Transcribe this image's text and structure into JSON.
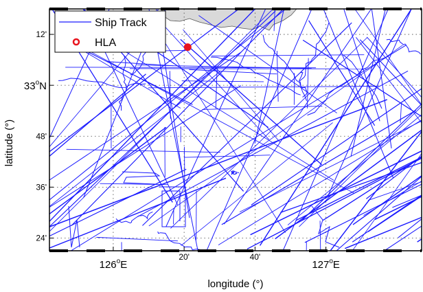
{
  "map": {
    "x_label": "longitude (°)",
    "y_label": "latitude (°)",
    "x_ticks": [
      {
        "lon": 126.0,
        "deg": "126",
        "unit": "E",
        "minutes": ""
      },
      {
        "lon": 126.3333,
        "deg": "",
        "unit": "",
        "minutes": "20'"
      },
      {
        "lon": 126.6667,
        "deg": "",
        "unit": "",
        "minutes": "40'"
      },
      {
        "lon": 127.0,
        "deg": "127",
        "unit": "E",
        "minutes": ""
      }
    ],
    "y_ticks": [
      {
        "lat": 33.2,
        "deg": "",
        "unit": "",
        "minutes": "12'"
      },
      {
        "lat": 33.0,
        "deg": "33",
        "unit": "N",
        "minutes": ""
      },
      {
        "lat": 32.8,
        "deg": "",
        "unit": "",
        "minutes": "48'"
      },
      {
        "lat": 32.6,
        "deg": "",
        "unit": "",
        "minutes": "36'"
      },
      {
        "lat": 32.4,
        "deg": "",
        "unit": "",
        "minutes": "24'"
      }
    ],
    "degree_symbol": "o",
    "lon_range": [
      125.7,
      127.45
    ],
    "lat_range": [
      32.35,
      33.3
    ],
    "grid": "dotted",
    "legend_position": "top-left",
    "legend": [
      {
        "key": "ship_track",
        "label": "Ship Track",
        "marker": "line",
        "color": "#1a1aff"
      },
      {
        "key": "hla",
        "label": "HLA",
        "marker": "open-circle",
        "color": "#e8141e"
      }
    ],
    "hla": {
      "lon": 126.35,
      "lat": 33.15
    },
    "land_color": "#d9d9d9",
    "track_color": "#1a1aff",
    "marker_color": "#e8141e"
  }
}
